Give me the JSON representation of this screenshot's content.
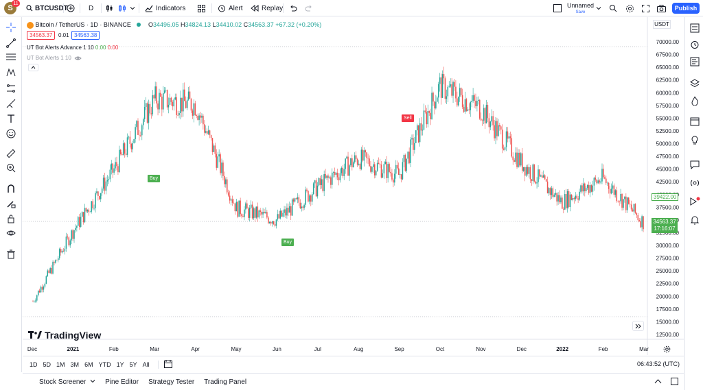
{
  "header": {
    "avatar_letter": "S",
    "notification_count": "11",
    "symbol": "BTCUSDT",
    "interval": "D",
    "indicators_label": "Indicators",
    "alert_label": "Alert",
    "replay_label": "Replay",
    "layout_name": "Unnamed",
    "layout_status": "Save",
    "publish_label": "Publish"
  },
  "legend": {
    "title": "Bitcoin / TetherUS · 1D · BINANCE",
    "open_label": "O",
    "open": "34496.05",
    "high_label": "H",
    "high": "34824.13",
    "low_label": "L",
    "low": "34410.02",
    "close_label": "C",
    "close": "34563.37",
    "change": "+67.32 (+0.20%)",
    "bid": "34563.37",
    "spread": "0.01",
    "ask": "34563.38",
    "indicator1": "UT Bot Alerts Advance 1 10",
    "indicator1_v1": "0.00",
    "indicator1_v2": "0.00",
    "indicator2": "UT Bot Alerts 1 10"
  },
  "currency": "USDT",
  "watermark": "TradingView",
  "price_axis": [
    "70000.00",
    "67500.00",
    "65000.00",
    "62500.00",
    "60000.00",
    "57500.00",
    "55000.00",
    "52500.00",
    "50000.00",
    "47500.00",
    "45000.00",
    "42500.00",
    "40000.00",
    "37500.00",
    "35000.00",
    "32500.00",
    "30000.00",
    "27500.00",
    "25000.00",
    "22500.00",
    "20000.00",
    "17500.00",
    "15000.00",
    "12500.00"
  ],
  "time_axis": [
    "Dec",
    "2021",
    "Feb",
    "Mar",
    "Apr",
    "May",
    "Jun",
    "Jul",
    "Aug",
    "Sep",
    "Oct",
    "Nov",
    "Dec",
    "2022",
    "Feb",
    "Mar"
  ],
  "markers": [
    {
      "label": "Buy",
      "color": "#4caf50"
    },
    {
      "label": "Buy",
      "color": "#4caf50"
    },
    {
      "label": "Sell",
      "color": "#f23645"
    }
  ],
  "price_labels": {
    "line_price": "39422.00",
    "last_price": "34563.37",
    "countdown": "17:16:07"
  },
  "ranges": [
    "1D",
    "5D",
    "1M",
    "3M",
    "6M",
    "YTD",
    "1Y",
    "5Y",
    "All"
  ],
  "clock": "06:43:52 (UTC)",
  "panels": [
    "Stock Screener",
    "Pine Editor",
    "Strategy Tester",
    "Trading Panel"
  ],
  "colors": {
    "up": "#26a69a",
    "down": "#ef5350",
    "accent": "#2962ff"
  },
  "chart_data": {
    "type": "candlestick",
    "symbol": "BTCUSDT",
    "ylim": [
      12500,
      70000
    ],
    "x": [
      "2020-12",
      "2021-01",
      "2021-02",
      "2021-03",
      "2021-04",
      "2021-05",
      "2021-06",
      "2021-07",
      "2021-08",
      "2021-09",
      "2021-10",
      "2021-11",
      "2021-12",
      "2022-01",
      "2022-02",
      "2022-03"
    ],
    "approx_close": [
      19000,
      33000,
      45000,
      58800,
      57700,
      37300,
      35000,
      41500,
      47100,
      43800,
      61300,
      57000,
      46300,
      38500,
      43200,
      34563
    ]
  }
}
